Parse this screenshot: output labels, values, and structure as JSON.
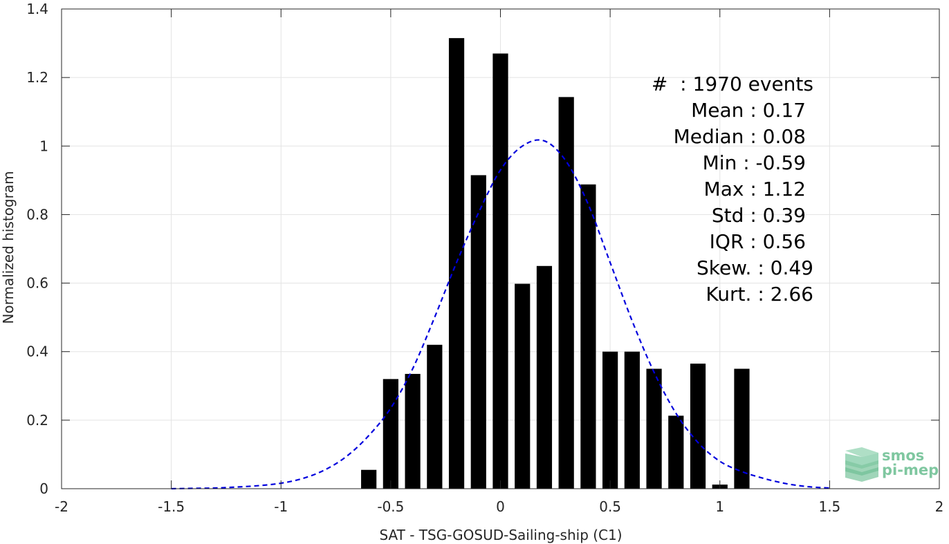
{
  "chart_data": {
    "type": "bar",
    "xlabel": "SAT - TSG-GOSUD-Sailing-ship (C1)",
    "ylabel": "Normalized histogram",
    "xlim": [
      -2,
      2
    ],
    "ylim": [
      0,
      1.4
    ],
    "xticks": [
      -2,
      -1.5,
      -1,
      -0.5,
      0,
      0.5,
      1,
      1.5,
      2
    ],
    "xtick_labels": [
      "-2",
      "-1.5",
      "-1",
      "-0.5",
      "0",
      "0.5",
      "1",
      "1.5",
      "2"
    ],
    "yticks": [
      0,
      0.2,
      0.4,
      0.6,
      0.8,
      1,
      1.2,
      1.4
    ],
    "ytick_labels": [
      "0",
      "0.2",
      "0.4",
      "0.6",
      "0.8",
      "1",
      "1.2",
      "1.4"
    ],
    "grid": true,
    "bar_color": "#000000",
    "bar_width": 0.07,
    "bars": {
      "x": [
        -0.6,
        -0.5,
        -0.4,
        -0.3,
        -0.2,
        -0.1,
        0.0,
        0.1,
        0.2,
        0.3,
        0.4,
        0.5,
        0.6,
        0.7,
        0.8,
        0.9,
        1.0,
        1.1
      ],
      "values": [
        0.055,
        0.32,
        0.335,
        0.42,
        1.315,
        0.915,
        1.27,
        0.598,
        0.65,
        1.143,
        0.888,
        0.4,
        0.4,
        0.35,
        0.213,
        0.365,
        0.012,
        0.35
      ]
    },
    "fit_curve": {
      "style": "dashed",
      "color": "#0000dd",
      "x": [
        -1.5,
        -1.4,
        -1.3,
        -1.2,
        -1.1,
        -1.0,
        -0.9,
        -0.8,
        -0.7,
        -0.6,
        -0.5,
        -0.4,
        -0.3,
        -0.2,
        -0.1,
        0.0,
        0.1,
        0.2,
        0.3,
        0.4,
        0.5,
        0.6,
        0.7,
        0.8,
        0.9,
        1.0,
        1.1,
        1.2,
        1.3,
        1.4,
        1.5
      ],
      "values": [
        0.0,
        0.001,
        0.002,
        0.005,
        0.009,
        0.016,
        0.03,
        0.055,
        0.095,
        0.155,
        0.235,
        0.35,
        0.5,
        0.66,
        0.805,
        0.93,
        1.0,
        1.015,
        0.955,
        0.83,
        0.66,
        0.49,
        0.34,
        0.22,
        0.135,
        0.08,
        0.05,
        0.03,
        0.015,
        0.006,
        0.002
      ]
    },
    "stats": [
      {
        "label": "#  : 1970 events"
      },
      {
        "label": "Mean : 0.17"
      },
      {
        "label": "Median : 0.08"
      },
      {
        "label": "Min : -0.59"
      },
      {
        "label": "Max : 1.12"
      },
      {
        "label": "Std : 0.39"
      },
      {
        "label": "IQR : 0.56"
      },
      {
        "label": "Skew. : 0.49"
      },
      {
        "label": "Kurt. : 2.66"
      }
    ]
  },
  "logo": {
    "line1": "smos",
    "line2": "pi-mep",
    "color": "#7fc7a0"
  }
}
